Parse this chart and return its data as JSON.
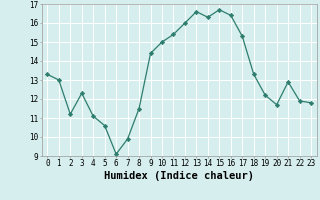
{
  "x": [
    0,
    1,
    2,
    3,
    4,
    5,
    6,
    7,
    8,
    9,
    10,
    11,
    12,
    13,
    14,
    15,
    16,
    17,
    18,
    19,
    20,
    21,
    22,
    23
  ],
  "y": [
    13.3,
    13.0,
    11.2,
    12.3,
    11.1,
    10.6,
    9.1,
    9.9,
    11.5,
    14.4,
    15.0,
    15.4,
    16.0,
    16.6,
    16.3,
    16.7,
    16.4,
    15.3,
    13.3,
    12.2,
    11.7,
    12.9,
    11.9,
    11.8
  ],
  "line_color": "#2e7d6e",
  "marker": "D",
  "marker_size": 2.2,
  "bg_color": "#d6eeee",
  "grid_color": "#ffffff",
  "xlabel": "Humidex (Indice chaleur)",
  "ylim": [
    9,
    17
  ],
  "xlim": [
    -0.5,
    23.5
  ],
  "yticks": [
    9,
    10,
    11,
    12,
    13,
    14,
    15,
    16,
    17
  ],
  "xticks": [
    0,
    1,
    2,
    3,
    4,
    5,
    6,
    7,
    8,
    9,
    10,
    11,
    12,
    13,
    14,
    15,
    16,
    17,
    18,
    19,
    20,
    21,
    22,
    23
  ],
  "tick_fontsize": 5.5,
  "xlabel_fontsize": 7.5,
  "linewidth": 0.9
}
